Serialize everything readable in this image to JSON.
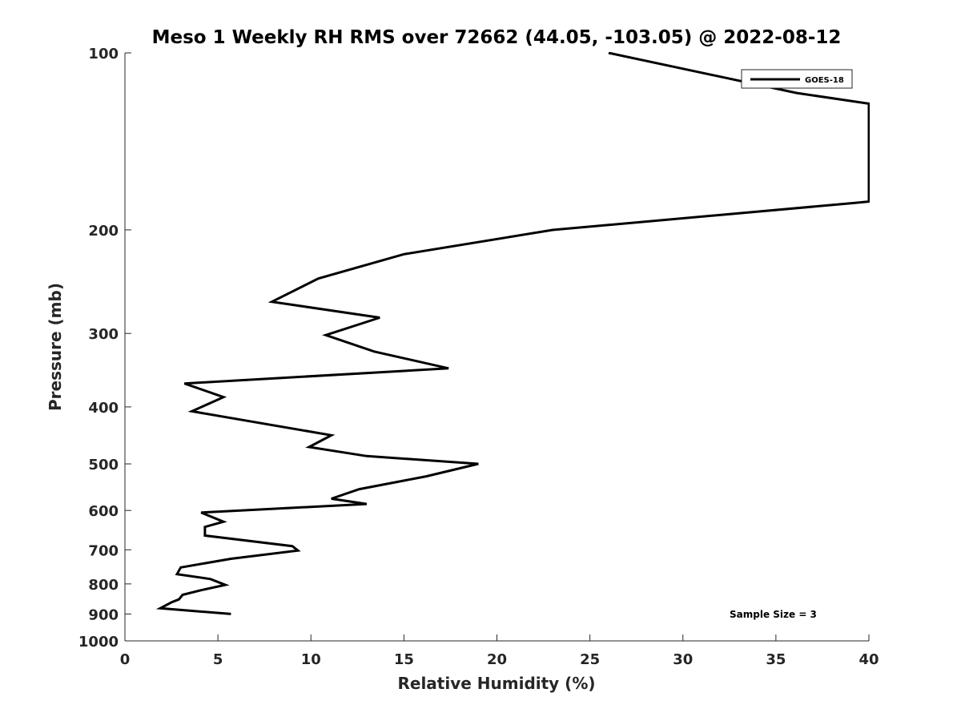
{
  "chart_data": {
    "type": "line",
    "title": "Meso 1 Weekly RH RMS over 72662 (44.05, -103.05) @ 2022-08-12",
    "xlabel": "Relative Humidity (%)",
    "ylabel": "Pressure (mb)",
    "xlim": [
      0,
      40
    ],
    "ylim": [
      100,
      1000
    ],
    "y_scale": "log",
    "y_reversed": true,
    "grid": false,
    "legend_position": "top-right",
    "x_ticks": [
      "0",
      "5",
      "10",
      "15",
      "20",
      "25",
      "30",
      "35",
      "40"
    ],
    "y_ticks": [
      "100",
      "200",
      "300",
      "400",
      "500",
      "600",
      "700",
      "800",
      "900",
      "1000"
    ],
    "annotation": "Sample Size = 3",
    "series": [
      {
        "name": "GOES-18",
        "color": "#000000",
        "points": [
          [
            26.0,
            100
          ],
          [
            36.1,
            117
          ],
          [
            40.0,
            122
          ],
          [
            40.0,
            179
          ],
          [
            39.2,
            180
          ],
          [
            23.0,
            200
          ],
          [
            15.0,
            220
          ],
          [
            10.4,
            242
          ],
          [
            7.9,
            265
          ],
          [
            13.7,
            282
          ],
          [
            10.8,
            302
          ],
          [
            13.4,
            322
          ],
          [
            17.4,
            344
          ],
          [
            3.2,
            365
          ],
          [
            5.3,
            385
          ],
          [
            3.6,
            407
          ],
          [
            11.1,
            447
          ],
          [
            9.9,
            468
          ],
          [
            13.0,
            485
          ],
          [
            19.0,
            500
          ],
          [
            16.2,
            525
          ],
          [
            12.6,
            552
          ],
          [
            11.1,
            573
          ],
          [
            13.0,
            585
          ],
          [
            4.1,
            605
          ],
          [
            5.3,
            627
          ],
          [
            4.3,
            640
          ],
          [
            4.3,
            662
          ],
          [
            9.0,
            690
          ],
          [
            9.3,
            702
          ],
          [
            5.7,
            725
          ],
          [
            3.0,
            750
          ],
          [
            2.8,
            770
          ],
          [
            4.6,
            785
          ],
          [
            5.4,
            803
          ],
          [
            4.1,
            820
          ],
          [
            3.1,
            835
          ],
          [
            2.9,
            850
          ],
          [
            2.5,
            860
          ],
          [
            1.9,
            880
          ],
          [
            5.7,
            900
          ]
        ]
      }
    ]
  }
}
